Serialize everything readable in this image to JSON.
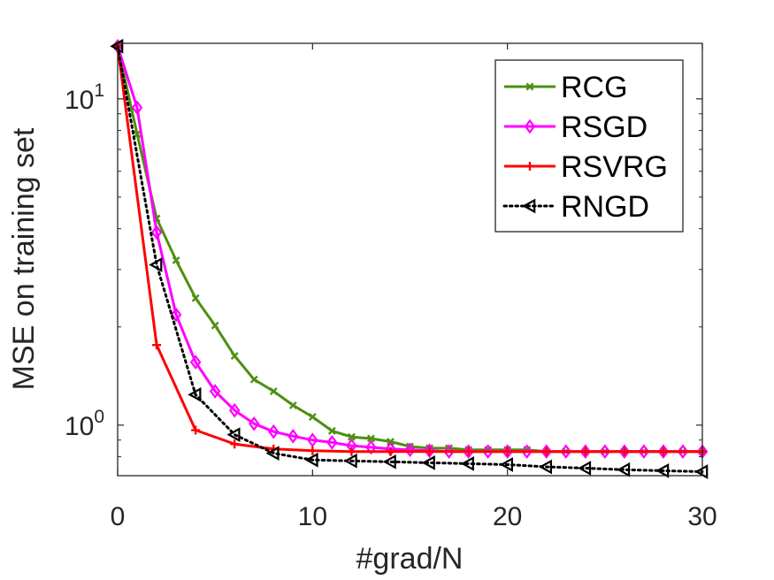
{
  "chart_data": {
    "type": "line",
    "title": "",
    "xlabel": "#grad/N",
    "ylabel": "MSE on training set",
    "xlim": [
      0,
      30
    ],
    "ylim": [
      0.7,
      14.8
    ],
    "yscale": "log",
    "grid": false,
    "legend_position": "top-right",
    "xticks": [
      0,
      10,
      20,
      30
    ],
    "xtick_labels": [
      "0",
      "10",
      "20",
      "30"
    ],
    "yticks": [
      {
        "value": 1,
        "base": "10",
        "exp": "0"
      },
      {
        "value": 10,
        "base": "10",
        "exp": "1"
      }
    ],
    "series": [
      {
        "name": "RCG",
        "color": "#4d9010",
        "marker": "x",
        "line_style": "solid",
        "x": [
          0,
          1,
          2,
          3,
          4,
          5,
          6,
          7,
          8,
          9,
          10,
          11,
          12,
          13,
          14,
          15,
          16,
          17,
          18,
          19,
          20,
          21,
          22,
          23,
          24,
          25,
          26,
          27,
          28,
          29,
          30
        ],
        "values": [
          14.5,
          7.8,
          4.3,
          3.2,
          2.45,
          2.02,
          1.63,
          1.38,
          1.27,
          1.15,
          1.06,
          0.96,
          0.92,
          0.91,
          0.89,
          0.86,
          0.85,
          0.85,
          0.84,
          0.84,
          0.84,
          0.84,
          0.83,
          0.83,
          0.83,
          0.83,
          0.83,
          0.83,
          0.83,
          0.83,
          0.83
        ]
      },
      {
        "name": "RSGD",
        "color": "#ff00ff",
        "marker": "diamond",
        "line_style": "solid",
        "x": [
          0,
          1,
          2,
          3,
          4,
          5,
          6,
          7,
          8,
          9,
          10,
          11,
          12,
          13,
          14,
          15,
          16,
          17,
          18,
          19,
          20,
          21,
          22,
          23,
          24,
          25,
          26,
          27,
          28,
          29,
          30
        ],
        "values": [
          14.5,
          9.4,
          3.9,
          2.18,
          1.56,
          1.27,
          1.11,
          1.01,
          0.955,
          0.925,
          0.9,
          0.885,
          0.865,
          0.855,
          0.845,
          0.84,
          0.835,
          0.83,
          0.83,
          0.83,
          0.83,
          0.83,
          0.83,
          0.83,
          0.83,
          0.83,
          0.83,
          0.83,
          0.83,
          0.83,
          0.83
        ]
      },
      {
        "name": "RSVRG",
        "color": "#ff0000",
        "marker": "plus",
        "line_style": "solid",
        "x": [
          0,
          2,
          4,
          6,
          8,
          10,
          12,
          14,
          16,
          18,
          20,
          22,
          24,
          26,
          28,
          30
        ],
        "values": [
          14.5,
          1.76,
          0.965,
          0.875,
          0.845,
          0.835,
          0.83,
          0.83,
          0.83,
          0.83,
          0.83,
          0.83,
          0.83,
          0.83,
          0.83,
          0.83
        ]
      },
      {
        "name": "RNGD",
        "color": "#000000",
        "marker": "triangle-left",
        "line_style": "dotted",
        "x": [
          0,
          2,
          4,
          6,
          8,
          10,
          12,
          14,
          16,
          18,
          20,
          22,
          24,
          26,
          28,
          30
        ],
        "values": [
          14.5,
          3.1,
          1.24,
          0.935,
          0.82,
          0.782,
          0.777,
          0.772,
          0.767,
          0.762,
          0.757,
          0.745,
          0.738,
          0.73,
          0.725,
          0.72
        ]
      }
    ]
  }
}
